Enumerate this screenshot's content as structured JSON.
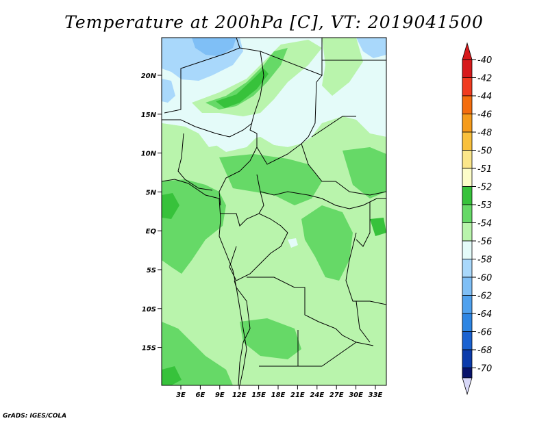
{
  "title": "Temperature at 200hPa [C], VT: 2019041500",
  "credit": "GrADS: IGES/COLA",
  "lat_labels": [
    "20N",
    "15N",
    "10N",
    "5N",
    "EQ",
    "5S",
    "10S",
    "15S"
  ],
  "lon_labels": [
    "3E",
    "6E",
    "9E",
    "12E",
    "15E",
    "18E",
    "21E",
    "24E",
    "27E",
    "30E",
    "33E"
  ],
  "colorbar": [
    {
      "label": "-40",
      "color": "#d7191c"
    },
    {
      "label": "-42",
      "color": "#f03b20"
    },
    {
      "label": "-44",
      "color": "#f46d0e"
    },
    {
      "label": "-46",
      "color": "#f59b1b"
    },
    {
      "label": "-48",
      "color": "#f9c03c"
    },
    {
      "label": "-50",
      "color": "#fbe68a"
    },
    {
      "label": "-51",
      "color": "#fdfdc9"
    },
    {
      "label": "-52",
      "color": "#37c23b"
    },
    {
      "label": "-53",
      "color": "#66d967"
    },
    {
      "label": "-54",
      "color": "#b9f4ac"
    },
    {
      "label": "-56",
      "color": "#e4fbf9"
    },
    {
      "label": "-58",
      "color": "#a9d8fb"
    },
    {
      "label": "-60",
      "color": "#7fbff6"
    },
    {
      "label": "-62",
      "color": "#4fa1ee"
    },
    {
      "label": "-64",
      "color": "#2d85e3"
    },
    {
      "label": "-66",
      "color": "#1a62d1"
    },
    {
      "label": "-68",
      "color": "#0b3bab"
    },
    {
      "label": "-70",
      "color": "#08136b"
    }
  ],
  "colorbar_end_colors": {
    "top": "#d7191c",
    "bottom": "#d8d8f8"
  }
}
